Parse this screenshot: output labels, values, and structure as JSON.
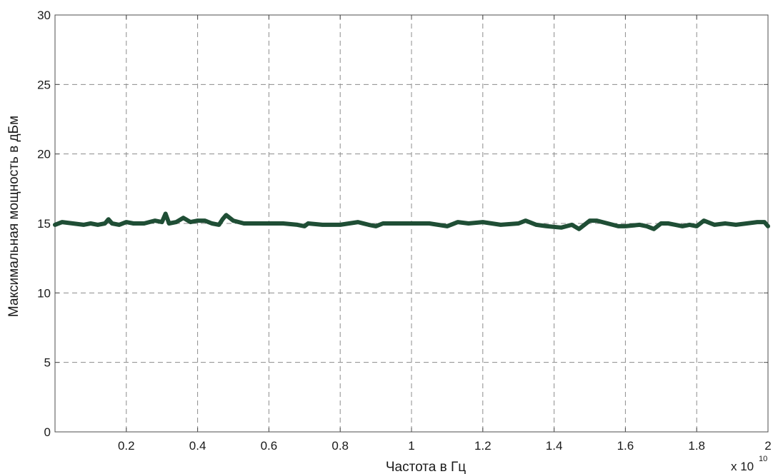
{
  "chart_data": {
    "type": "line",
    "xlabel": "Частота в Гц",
    "ylabel": "Максимальная мощность в дБм",
    "x_exponent_prefix": "x 10",
    "x_exponent_power": "10",
    "xlim": [
      0,
      2
    ],
    "ylim": [
      0,
      30
    ],
    "x_ticks": [
      0.2,
      0.4,
      0.6,
      0.8,
      1,
      1.2,
      1.4,
      1.6,
      1.8,
      2
    ],
    "x_tick_labels": [
      "0.2",
      "0.4",
      "0.6",
      "0.8",
      "1",
      "1.2",
      "1.4",
      "1.6",
      "1.8",
      "2"
    ],
    "y_ticks": [
      0,
      5,
      10,
      15,
      20,
      25,
      30
    ],
    "y_tick_labels": [
      "0",
      "5",
      "10",
      "15",
      "20",
      "25",
      "30"
    ],
    "grid": true,
    "colors": {
      "series": "#1f4e35",
      "grid": "#8c8c8c"
    },
    "series": [
      {
        "x": [
          0,
          0.02,
          0.05,
          0.08,
          0.1,
          0.12,
          0.14,
          0.15,
          0.16,
          0.18,
          0.2,
          0.22,
          0.25,
          0.28,
          0.3,
          0.31,
          0.32,
          0.34,
          0.36,
          0.38,
          0.4,
          0.42,
          0.44,
          0.46,
          0.47,
          0.48,
          0.5,
          0.53,
          0.56,
          0.6,
          0.64,
          0.68,
          0.7,
          0.71,
          0.75,
          0.8,
          0.85,
          0.88,
          0.9,
          0.92,
          0.95,
          1,
          1.05,
          1.1,
          1.13,
          1.16,
          1.2,
          1.25,
          1.3,
          1.32,
          1.35,
          1.38,
          1.42,
          1.45,
          1.47,
          1.5,
          1.52,
          1.55,
          1.58,
          1.6,
          1.64,
          1.66,
          1.68,
          1.7,
          1.72,
          1.74,
          1.76,
          1.78,
          1.8,
          1.82,
          1.85,
          1.88,
          1.91,
          1.94,
          1.97,
          1.99,
          2.0
        ],
        "y": [
          14.9,
          15.1,
          15.0,
          14.9,
          15.0,
          14.9,
          15.0,
          15.3,
          15.0,
          14.9,
          15.1,
          15.0,
          15.0,
          15.2,
          15.1,
          15.7,
          15.0,
          15.1,
          15.4,
          15.1,
          15.2,
          15.2,
          15.0,
          14.9,
          15.3,
          15.6,
          15.2,
          15.0,
          15.0,
          15.0,
          15.0,
          14.9,
          14.8,
          15.0,
          14.9,
          14.9,
          15.1,
          14.9,
          14.8,
          15.0,
          15.0,
          15.0,
          15.0,
          14.8,
          15.1,
          15.0,
          15.1,
          14.9,
          15.0,
          15.2,
          14.9,
          14.8,
          14.7,
          14.9,
          14.6,
          15.2,
          15.2,
          15.0,
          14.8,
          14.8,
          14.9,
          14.8,
          14.6,
          15.0,
          15.0,
          14.9,
          14.8,
          14.9,
          14.8,
          15.2,
          14.9,
          15.0,
          14.9,
          15.0,
          15.1,
          15.1,
          14.8
        ]
      }
    ]
  }
}
